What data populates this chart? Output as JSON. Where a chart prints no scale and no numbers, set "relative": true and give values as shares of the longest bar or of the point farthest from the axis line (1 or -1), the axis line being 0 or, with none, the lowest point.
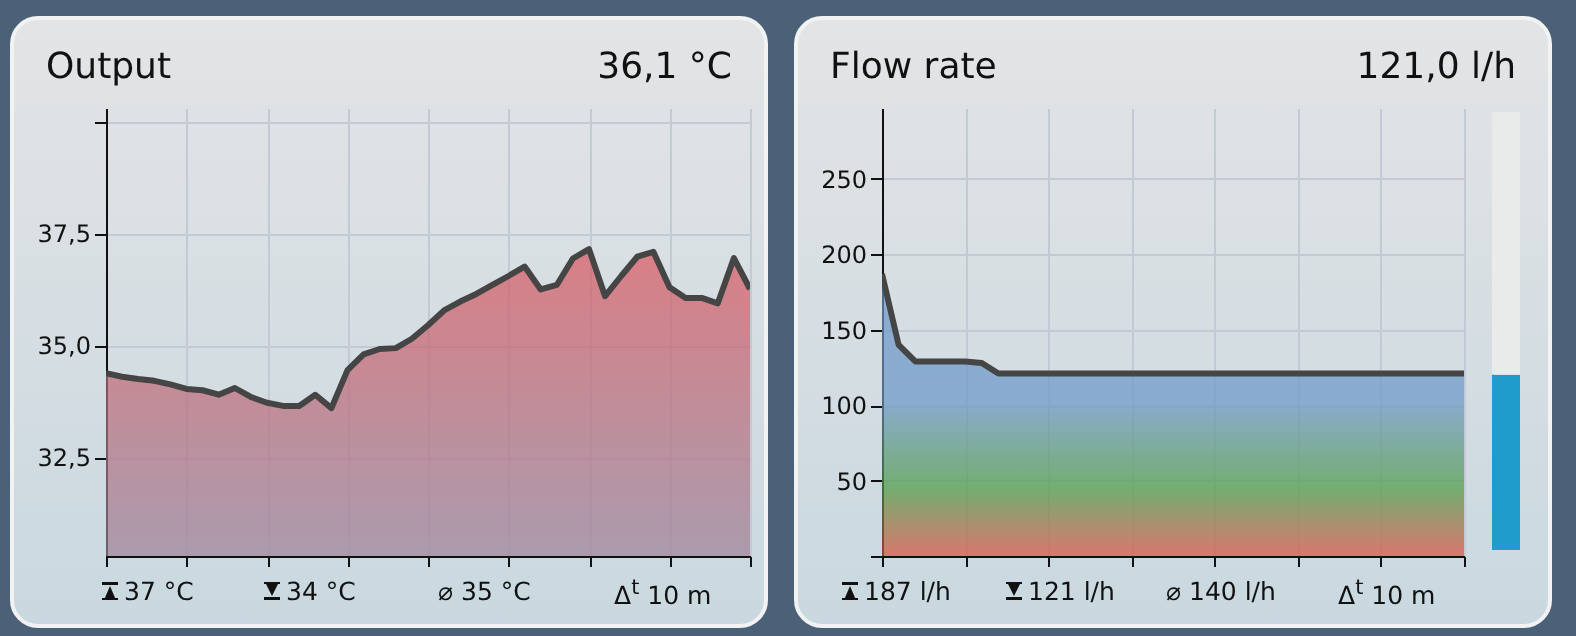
{
  "chart_data": [
    {
      "type": "area",
      "title": "Output",
      "subtitle": "36,1 °C",
      "categories": [
        null,
        null,
        null,
        null,
        null,
        null,
        null,
        null,
        null,
        null,
        null,
        null,
        null,
        null,
        null,
        null,
        null,
        null,
        null,
        null,
        null,
        null,
        null,
        null,
        null,
        null,
        null,
        null,
        null,
        null,
        null,
        null,
        null,
        null,
        null,
        null,
        null,
        null,
        null,
        null,
        null
      ],
      "values": [
        34.38,
        34.3,
        34.25,
        34.21,
        34.13,
        34.03,
        34.0,
        33.9,
        34.05,
        33.85,
        33.72,
        33.65,
        33.65,
        33.9,
        33.6,
        34.45,
        34.8,
        34.92,
        34.94,
        35.15,
        35.45,
        35.78,
        35.98,
        36.15,
        36.35,
        36.55,
        36.76,
        36.25,
        36.35,
        36.94,
        37.15,
        36.1,
        36.55,
        36.98,
        37.09,
        36.3,
        36.06,
        36.06,
        35.94,
        36.95,
        36.26
      ],
      "color": "#d9555d",
      "ylim": [
        30.3,
        40.3
      ],
      "yticks": [
        {
          "value": 32.5,
          "label": "32,5"
        },
        {
          "value": 35,
          "label": "35,0"
        },
        {
          "value": 37.5,
          "label": "37,5"
        },
        {
          "value": 40,
          "label": null
        }
      ],
      "grid": true,
      "tick_labels": "y",
      "annotations": [
        "37 °C",
        "34 °C",
        "⌀ 35 °C",
        "Δ$^{t}$ 10 m"
      ]
    },
    {
      "type": "area",
      "title": "Flow rate",
      "subtitle": "121,0 l/h",
      "categories": [
        null,
        null,
        null,
        null,
        null,
        null,
        null,
        null,
        null,
        null,
        null,
        null,
        null,
        null,
        null,
        null,
        null,
        null,
        null,
        null,
        null,
        null,
        null,
        null,
        null,
        null,
        null,
        null,
        null,
        null,
        null,
        null,
        null,
        null,
        null,
        null
      ],
      "values": [
        187,
        140,
        129,
        129,
        129,
        129,
        128,
        121,
        121,
        121,
        121,
        121,
        121,
        121,
        121,
        121,
        121,
        121,
        121,
        121,
        121,
        121,
        121,
        121,
        121,
        121,
        121,
        121,
        121,
        121,
        121,
        121,
        121,
        121,
        121,
        121
      ],
      "color": "#6b96c8",
      "ylim": [
        0,
        297
      ],
      "yticks": [
        {
          "value": 0,
          "label": null
        },
        50,
        100,
        150,
        200,
        250
      ],
      "grid": true,
      "tick_labels": "y",
      "annotations": [
        "187 l/h",
        "121 l/h",
        "⌀ 140 l/h",
        "Δ$^{t}$ 10 m"
      ]
    },
    {
      "type": "bar",
      "categories": [
        null
      ],
      "stacked": true,
      "relative": true,
      "series": [
        {
          "color": "#1f9ccc",
          "values": [
            0.4
          ]
        },
        {
          "color": "#e9eaea",
          "values": [
            0.6
          ]
        }
      ]
    }
  ]
}
